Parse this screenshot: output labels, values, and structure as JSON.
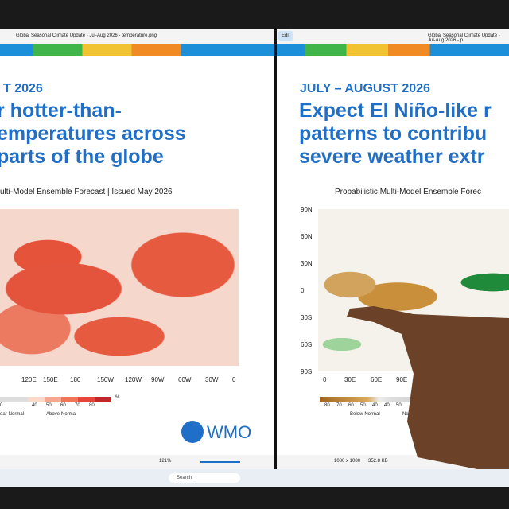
{
  "left_window": {
    "title": "Global Seasonal Climate Update - Jul-Aug 2026 - temperature.png",
    "heading_date": "T 2026",
    "heading_lines": [
      "r hotter-than-",
      "emperatures across",
      "parts of the globe"
    ],
    "caption": "ulti-Model Ensemble Forecast | Issued May 2026",
    "lon_labels": [
      "120E",
      "150E",
      "180",
      "150W",
      "120W",
      "90W",
      "60W",
      "30W",
      "0"
    ],
    "legend_ticks": [
      "0",
      "40",
      "50",
      "60",
      "70",
      "80"
    ],
    "legend_unit": "%",
    "legend_labels": [
      "ear-Normal",
      "Above-Normal"
    ],
    "logo": "WMO",
    "zoom": "121%"
  },
  "right_window": {
    "title": "Global Seasonal Climate Update - Jul-Aug 2026 - p",
    "edit_button": "Edit",
    "heading_date": "JULY – AUGUST 2026",
    "heading_lines": [
      "Expect El Niño-like r",
      "patterns to contribu",
      "severe weather extr"
    ],
    "caption": "Probabilistic Multi-Model Ensemble Forec",
    "lat_labels": [
      "90N",
      "60N",
      "30N",
      "0",
      "30S",
      "60S",
      "90S"
    ],
    "lon_labels": [
      "0",
      "30E",
      "60E",
      "90E"
    ],
    "legend_ticks": [
      "80",
      "70",
      "60",
      "50",
      "40",
      "40",
      "50"
    ],
    "legend_labels": [
      "Below-Normal",
      "Near-Normal"
    ],
    "dimensions": "1080 x 1080",
    "file_size": "352.8 KB"
  },
  "taskbar": {
    "search": "Search"
  }
}
